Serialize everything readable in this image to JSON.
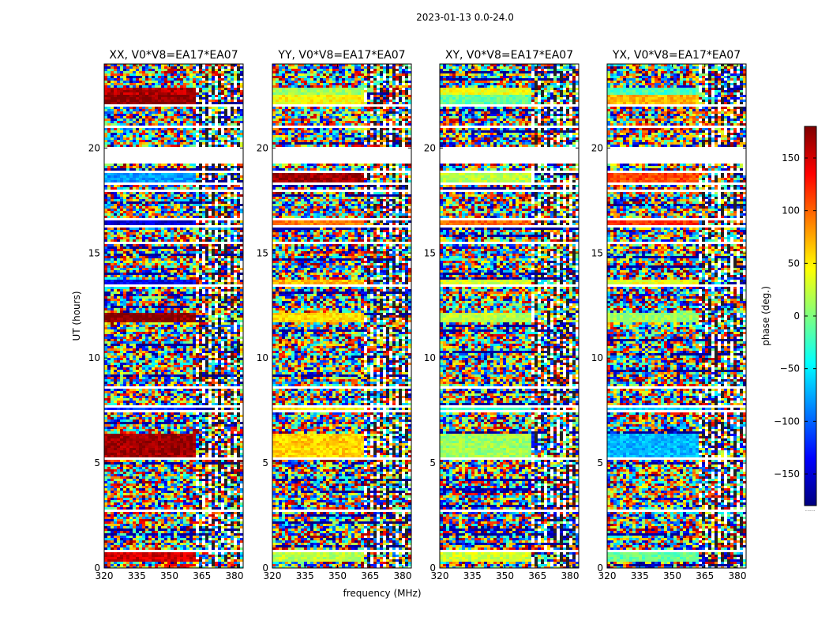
{
  "figure": {
    "suptitle": "2023-01-13 0.0-24.0",
    "xlabel": "frequency (MHz)",
    "ylabel": "UT (hours)",
    "colorbar_label": "phase (deg.)",
    "colorbar_footer": "....."
  },
  "chart_data": {
    "type": "heatmap",
    "colormap": "jet",
    "colormap_colors": [
      "#00007f",
      "#0000ff",
      "#007fff",
      "#00ffff",
      "#7fff7f",
      "#ffff00",
      "#ff7f00",
      "#ff0000",
      "#7f0000"
    ],
    "xlim": [
      320,
      384
    ],
    "ylim": [
      0,
      24
    ],
    "clim": [
      -180,
      180
    ],
    "x_ticks": [
      320,
      335,
      350,
      365,
      380
    ],
    "x_tick_labels": [
      "320",
      "335",
      "350",
      "365",
      "380"
    ],
    "y_ticks": [
      0,
      5,
      10,
      15,
      20
    ],
    "y_tick_labels": [
      "0",
      "5",
      "10",
      "15",
      "20"
    ],
    "colorbar_ticks": [
      150,
      100,
      50,
      0,
      -50,
      -100,
      -150
    ],
    "colorbar_tick_labels": [
      "150",
      "100",
      "50",
      "0",
      "−50",
      "−100",
      "−150"
    ],
    "flagged_gaps_ut": [
      [
        0.8,
        0.9
      ],
      [
        2.7,
        2.77
      ],
      [
        2.98,
        3.05
      ],
      [
        5.18,
        5.24
      ],
      [
        7.45,
        7.54
      ],
      [
        7.68,
        7.75
      ],
      [
        8.3,
        8.35
      ],
      [
        8.55,
        8.62
      ],
      [
        9.52,
        9.6
      ],
      [
        10.32,
        10.38
      ],
      [
        11.55,
        11.62
      ],
      [
        13.38,
        13.45
      ],
      [
        13.8,
        13.86
      ],
      [
        15.42,
        15.48
      ],
      [
        16.25,
        16.32
      ],
      [
        16.55,
        16.62
      ],
      [
        17.92,
        17.98
      ],
      [
        18.28,
        18.35
      ],
      [
        18.85,
        18.96
      ],
      [
        19.25,
        20.0
      ],
      [
        20.98,
        21.05
      ],
      [
        21.95,
        22.05
      ]
    ],
    "coherent_bands": [
      {
        "ut": [
          5.3,
          6.4
        ],
        "phase": [
          170,
          60,
          10,
          -70
        ]
      },
      {
        "ut": [
          7.55,
          7.68
        ],
        "phase": [
          -120,
          50,
          -20,
          -60
        ]
      },
      {
        "ut": [
          11.68,
          12.12
        ],
        "phase": [
          175,
          55,
          20,
          10
        ]
      },
      {
        "ut": [
          13.48,
          13.75
        ],
        "phase": [
          -140,
          70,
          30,
          40
        ]
      },
      {
        "ut": [
          16.35,
          16.55
        ],
        "phase": [
          -150,
          90,
          100,
          120
        ]
      },
      {
        "ut": [
          18.38,
          18.86
        ],
        "phase": [
          -80,
          170,
          20,
          110
        ]
      },
      {
        "ut": [
          22.1,
          22.5
        ],
        "phase": [
          175,
          45,
          -10,
          70
        ]
      },
      {
        "ut": [
          22.5,
          22.85
        ],
        "phase": [
          160,
          10,
          40,
          -20
        ]
      },
      {
        "ut": [
          0.3,
          0.78
        ],
        "phase": [
          150,
          20,
          30,
          -10
        ]
      }
    ],
    "panels": [
      {
        "title": "XX, V0*V8=EA17*EA07",
        "stokes": "XX",
        "baseline": "V0*V8=EA17*EA07"
      },
      {
        "title": "YY, V0*V8=EA17*EA07",
        "stokes": "YY",
        "baseline": "V0*V8=EA17*EA07"
      },
      {
        "title": "XY, V0*V8=EA17*EA07",
        "stokes": "XY",
        "baseline": "V0*V8=EA17*EA07"
      },
      {
        "title": "YX, V0*V8=EA17*EA07",
        "stokes": "YX",
        "baseline": "V0*V8=EA17*EA07"
      }
    ]
  }
}
